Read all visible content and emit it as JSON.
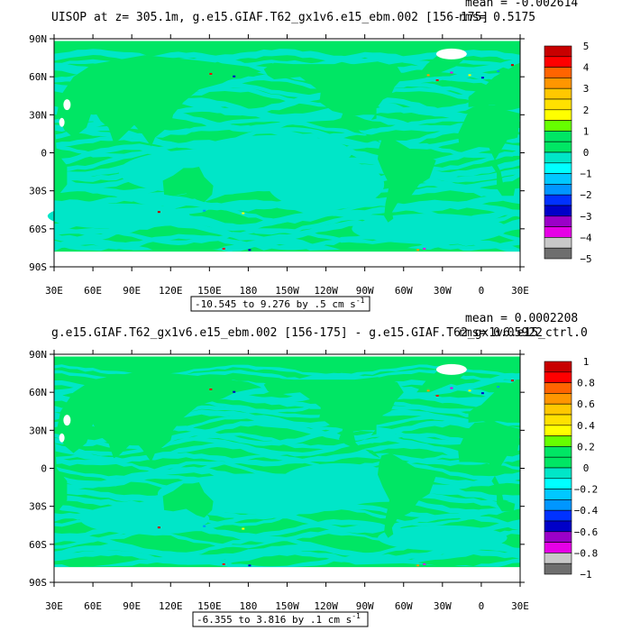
{
  "panels": [
    {
      "title": "UISOP at z= 305.1m, g.e15.GIAF.T62_gx1v6.e15_ebm.002 [156-175]",
      "mean_text": "mean = -0.002614",
      "rms_text": "rms= 0.5175",
      "range_text": "-10.545 to 9.276 by .5 cm s",
      "range_exponent": "-1",
      "colorbar_labels": [
        "5",
        "4",
        "3",
        "2",
        "1",
        "0",
        "−1",
        "−2",
        "−3",
        "−4",
        "−5"
      ]
    },
    {
      "title": "g.e15.GIAF.T62_gx1v6.e15_ebm.002 [156-175] - g.e15.GIAF.T62_gx1v6.e15_ctrl.0",
      "mean_text": "mean = 0.0002208",
      "rms_text": "rms= 0.05922",
      "range_text": "-6.355 to 3.816 by .1 cm s",
      "range_exponent": "-1",
      "colorbar_labels": [
        "1",
        "0.8",
        "0.6",
        "0.4",
        "0.2",
        "0",
        "−0.2",
        "−0.4",
        "−0.6",
        "−0.8",
        "−1"
      ]
    }
  ],
  "chart_data": [
    {
      "type": "heatmap",
      "title": "UISOP at z= 305.1m, g.e15.GIAF.T62_gx1v6.e15_ebm.002 [156-175]",
      "x_ticks": [
        "30E",
        "60E",
        "90E",
        "120E",
        "150E",
        "180",
        "150W",
        "120W",
        "90W",
        "60W",
        "30W",
        "0",
        "30E"
      ],
      "y_ticks": [
        "90N",
        "60N",
        "30N",
        "0",
        "30S",
        "60S",
        "90S"
      ],
      "xlim": [
        30,
        390
      ],
      "ylim": [
        -90,
        90
      ],
      "levels": [
        -5,
        -4.5,
        -4,
        -3.5,
        -3,
        -2.5,
        -2,
        -1.5,
        -1,
        -0.5,
        0,
        0.5,
        1,
        1.5,
        2,
        2.5,
        3,
        3.5,
        4,
        4.5,
        5
      ],
      "colors": [
        "#6e6e6e",
        "#c8c8c8",
        "#e600e6",
        "#9b00c8",
        "#0000c8",
        "#0032ff",
        "#0096ff",
        "#00c8ff",
        "#00ffff",
        "#00e6c8",
        "#00e664",
        "#00e664",
        "#66ff00",
        "#ffff00",
        "#ffe100",
        "#ffc800",
        "#ff9600",
        "#ff6400",
        "#ff0000",
        "#c80000"
      ],
      "mean": -0.002614,
      "rms": 0.5175,
      "min": -10.545,
      "max": 9.276,
      "contour_interval": 0.5,
      "units": "cm s-1"
    },
    {
      "type": "heatmap",
      "title": "g.e15.GIAF.T62_gx1v6.e15_ebm.002 [156-175] - g.e15.GIAF.T62_gx1v6.e15_ctrl.0",
      "x_ticks": [
        "30E",
        "60E",
        "90E",
        "120E",
        "150E",
        "180",
        "150W",
        "120W",
        "90W",
        "60W",
        "30W",
        "0",
        "30E"
      ],
      "y_ticks": [
        "90N",
        "60N",
        "30N",
        "0",
        "30S",
        "60S",
        "90S"
      ],
      "xlim": [
        30,
        390
      ],
      "ylim": [
        -90,
        90
      ],
      "levels": [
        -1,
        -0.9,
        -0.8,
        -0.7,
        -0.6,
        -0.5,
        -0.4,
        -0.3,
        -0.2,
        -0.1,
        0,
        0.1,
        0.2,
        0.3,
        0.4,
        0.5,
        0.6,
        0.7,
        0.8,
        0.9,
        1
      ],
      "colors": [
        "#6e6e6e",
        "#c8c8c8",
        "#e600e6",
        "#9b00c8",
        "#0000c8",
        "#0032ff",
        "#0096ff",
        "#00c8ff",
        "#00ffff",
        "#00e6c8",
        "#00e664",
        "#00e664",
        "#66ff00",
        "#ffff00",
        "#ffe100",
        "#ffc800",
        "#ff9600",
        "#ff6400",
        "#ff0000",
        "#c80000"
      ],
      "mean": 0.0002208,
      "rms": 0.05922,
      "min": -6.355,
      "max": 3.816,
      "contour_interval": 0.1,
      "units": "cm s-1"
    }
  ]
}
